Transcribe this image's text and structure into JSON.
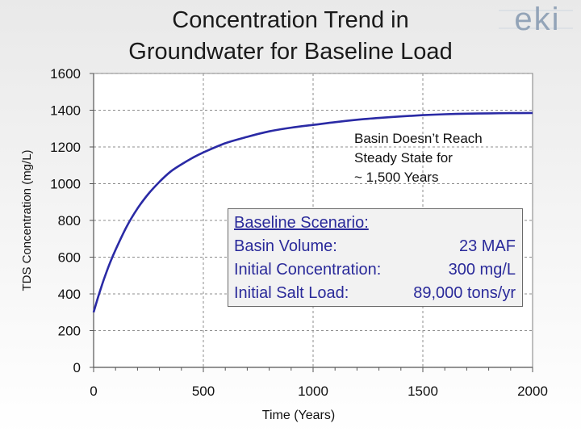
{
  "slide": {
    "title_line1": "Concentration Trend in",
    "title_line2": "Groundwater for Baseline Load"
  },
  "logo": {
    "text": "eki",
    "color": "#93a4b8"
  },
  "annotation": {
    "line1": "Basin Doesn’t Reach",
    "line2": "Steady State for",
    "line3": "~ 1,500 Years"
  },
  "scenario_box": {
    "heading": "Baseline Scenario:",
    "rows": [
      {
        "label": "Basin Volume:",
        "value": "23 MAF"
      },
      {
        "label": "Initial Concentration:",
        "value": "300 mg/L"
      },
      {
        "label": "Initial Salt Load:",
        "value": "89,000 tons/yr"
      }
    ]
  },
  "chart_data": {
    "type": "line",
    "title": "Concentration Trend in Groundwater for Baseline Load",
    "xlabel": "Time (Years)",
    "ylabel": "TDS Concentration (mg/L)",
    "xlim": [
      0,
      2000
    ],
    "ylim": [
      0,
      1600
    ],
    "x_ticks": [
      0,
      500,
      1000,
      1500,
      2000
    ],
    "y_ticks": [
      0,
      200,
      400,
      600,
      800,
      1000,
      1200,
      1400,
      1600
    ],
    "grid": true,
    "line_color": "#2a2aa5",
    "series": [
      {
        "x": [
          0,
          25,
          50,
          75,
          100,
          150,
          200,
          250,
          300,
          350,
          400,
          450,
          500,
          600,
          700,
          800,
          900,
          1000,
          1100,
          1200,
          1300,
          1400,
          1500,
          1600,
          1700,
          1800,
          1900,
          2000
        ],
        "values": [
          300,
          400,
          490,
          570,
          640,
          765,
          865,
          945,
          1010,
          1065,
          1105,
          1140,
          1170,
          1220,
          1255,
          1285,
          1305,
          1320,
          1335,
          1348,
          1358,
          1366,
          1373,
          1378,
          1381,
          1383,
          1384,
          1385
        ]
      }
    ]
  }
}
